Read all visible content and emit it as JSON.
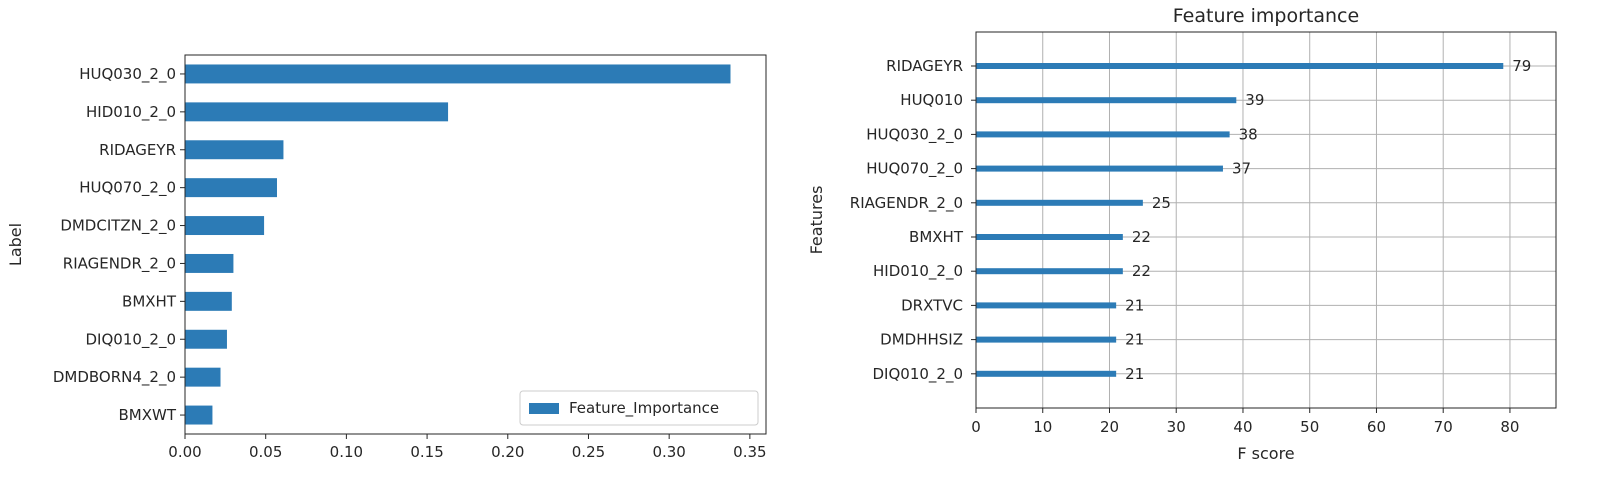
{
  "colors": {
    "bar": "#2c7bb6",
    "axis": "#262626",
    "grid": "#b0b0b0",
    "legend_border": "#cccccc"
  },
  "chart_data": [
    {
      "type": "bar",
      "orientation": "horizontal",
      "title": "",
      "xlabel": "",
      "ylabel": "Label",
      "categories": [
        "HUQ030_2_0",
        "HID010_2_0",
        "RIDAGEYR",
        "HUQ070_2_0",
        "DMDCITZN_2_0",
        "RIAGENDR_2_0",
        "BMXHT",
        "DIQ010_2_0",
        "DMDBORN4_2_0",
        "BMXWT"
      ],
      "series": [
        {
          "name": "Feature_Importance",
          "values": [
            0.338,
            0.163,
            0.061,
            0.057,
            0.049,
            0.03,
            0.029,
            0.026,
            0.022,
            0.017
          ]
        }
      ],
      "xlim": [
        0,
        0.36
      ],
      "xticks": [
        0.0,
        0.05,
        0.1,
        0.15,
        0.2,
        0.25,
        0.3,
        0.35
      ],
      "xtick_labels": [
        "0.00",
        "0.05",
        "0.10",
        "0.15",
        "0.20",
        "0.25",
        "0.30",
        "0.35"
      ],
      "grid": false,
      "legend_location": "lower-right"
    },
    {
      "type": "bar",
      "orientation": "horizontal",
      "title": "Feature importance",
      "xlabel": "F score",
      "ylabel": "Features",
      "categories": [
        "RIDAGEYR",
        "HUQ010",
        "HUQ030_2_0",
        "HUQ070_2_0",
        "RIAGENDR_2_0",
        "BMXHT",
        "HID010_2_0",
        "DRXTVC",
        "DMDHHSIZ",
        "DIQ010_2_0"
      ],
      "series": [
        {
          "values": [
            79,
            39,
            38,
            37,
            25,
            22,
            22,
            21,
            21,
            21
          ]
        }
      ],
      "value_labels": [
        "79",
        "39",
        "38",
        "37",
        "25",
        "22",
        "22",
        "21",
        "21",
        "21"
      ],
      "xlim": [
        0,
        86.9
      ],
      "xticks": [
        0,
        10,
        20,
        30,
        40,
        50,
        60,
        70,
        80
      ],
      "xtick_labels": [
        "0",
        "10",
        "20",
        "30",
        "40",
        "50",
        "60",
        "70",
        "80"
      ],
      "grid": true,
      "legend_location": "none"
    }
  ]
}
